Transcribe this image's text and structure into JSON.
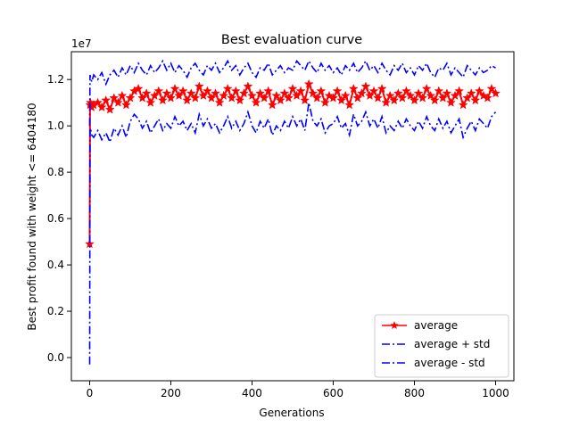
{
  "chart_data": {
    "type": "line",
    "title": "Best evaluation curve",
    "xlabel": "Generations",
    "ylabel": "Best profit found with weight <= 6404180",
    "offset_text": "1e7",
    "xlim": [
      -45,
      1045
    ],
    "ylim": [
      -0.1,
      1.32
    ],
    "y_scale_factor": 10000000,
    "x_ticks": [
      0,
      200,
      400,
      600,
      800,
      1000
    ],
    "y_ticks": [
      0.0,
      0.2,
      0.4,
      0.6,
      0.8,
      1.0,
      1.2
    ],
    "y_tick_labels": [
      "0.0",
      "0.2",
      "0.4",
      "0.6",
      "0.8",
      "1.0",
      "1.2"
    ],
    "x_tick_labels": [
      "0",
      "200",
      "400",
      "600",
      "800",
      "1000"
    ],
    "legend_position": "lower-right",
    "series": [
      {
        "name": "average",
        "color": "#ff0000",
        "style": "solid",
        "marker": "star",
        "x": [
          0,
          1,
          2,
          5,
          10,
          20,
          30,
          40,
          50,
          60,
          70,
          80,
          90,
          100,
          110,
          120,
          130,
          140,
          150,
          160,
          170,
          180,
          190,
          200,
          210,
          220,
          230,
          240,
          250,
          260,
          270,
          280,
          290,
          300,
          310,
          320,
          330,
          340,
          350,
          360,
          370,
          380,
          390,
          400,
          410,
          420,
          430,
          440,
          450,
          460,
          470,
          480,
          490,
          500,
          510,
          520,
          530,
          540,
          550,
          560,
          570,
          580,
          590,
          600,
          610,
          620,
          630,
          640,
          650,
          660,
          670,
          680,
          690,
          700,
          710,
          720,
          730,
          740,
          750,
          760,
          770,
          780,
          790,
          800,
          810,
          820,
          830,
          840,
          850,
          860,
          870,
          880,
          890,
          900,
          910,
          920,
          930,
          940,
          950,
          960,
          970,
          980,
          990,
          1000
        ],
        "values": [
          0.49,
          1.09,
          1.1,
          1.08,
          1.09,
          1.1,
          1.08,
          1.11,
          1.07,
          1.12,
          1.1,
          1.13,
          1.09,
          1.12,
          1.15,
          1.16,
          1.12,
          1.14,
          1.1,
          1.13,
          1.15,
          1.11,
          1.14,
          1.12,
          1.16,
          1.13,
          1.15,
          1.11,
          1.14,
          1.12,
          1.17,
          1.13,
          1.15,
          1.12,
          1.14,
          1.1,
          1.13,
          1.16,
          1.12,
          1.15,
          1.11,
          1.14,
          1.17,
          1.13,
          1.1,
          1.14,
          1.12,
          1.15,
          1.09,
          1.13,
          1.11,
          1.14,
          1.12,
          1.16,
          1.13,
          1.15,
          1.11,
          1.18,
          1.14,
          1.12,
          1.15,
          1.1,
          1.13,
          1.12,
          1.15,
          1.11,
          1.13,
          1.09,
          1.16,
          1.12,
          1.14,
          1.17,
          1.13,
          1.15,
          1.12,
          1.16,
          1.1,
          1.13,
          1.11,
          1.14,
          1.12,
          1.15,
          1.13,
          1.11,
          1.14,
          1.12,
          1.16,
          1.13,
          1.11,
          1.15,
          1.12,
          1.14,
          1.1,
          1.13,
          1.15,
          1.09,
          1.12,
          1.14,
          1.11,
          1.15,
          1.13,
          1.12,
          1.16,
          1.14
        ]
      },
      {
        "name": "average + std",
        "color": "#0000ff",
        "style": "dashdot",
        "x": [
          0,
          1,
          2,
          5,
          10,
          20,
          30,
          40,
          50,
          60,
          70,
          80,
          90,
          100,
          110,
          120,
          130,
          140,
          150,
          160,
          170,
          180,
          190,
          200,
          210,
          220,
          230,
          240,
          250,
          260,
          270,
          280,
          290,
          300,
          310,
          320,
          330,
          340,
          350,
          360,
          370,
          380,
          390,
          400,
          410,
          420,
          430,
          440,
          450,
          460,
          470,
          480,
          490,
          500,
          510,
          520,
          530,
          540,
          550,
          560,
          570,
          580,
          590,
          600,
          610,
          620,
          630,
          640,
          650,
          660,
          670,
          680,
          690,
          700,
          710,
          720,
          730,
          740,
          750,
          760,
          770,
          780,
          790,
          800,
          810,
          820,
          830,
          840,
          850,
          860,
          870,
          880,
          890,
          900,
          910,
          920,
          930,
          940,
          950,
          960,
          970,
          980,
          990,
          1000
        ],
        "values": [
          1.0,
          1.22,
          1.21,
          1.19,
          1.22,
          1.2,
          1.23,
          1.18,
          1.22,
          1.24,
          1.21,
          1.25,
          1.22,
          1.26,
          1.23,
          1.27,
          1.24,
          1.22,
          1.26,
          1.23,
          1.25,
          1.28,
          1.24,
          1.27,
          1.23,
          1.26,
          1.24,
          1.21,
          1.25,
          1.27,
          1.24,
          1.22,
          1.26,
          1.24,
          1.27,
          1.23,
          1.25,
          1.28,
          1.24,
          1.26,
          1.22,
          1.25,
          1.27,
          1.23,
          1.21,
          1.25,
          1.24,
          1.27,
          1.22,
          1.24,
          1.26,
          1.23,
          1.25,
          1.24,
          1.28,
          1.26,
          1.24,
          1.28,
          1.25,
          1.23,
          1.27,
          1.24,
          1.26,
          1.23,
          1.25,
          1.22,
          1.26,
          1.24,
          1.27,
          1.23,
          1.25,
          1.28,
          1.24,
          1.26,
          1.23,
          1.27,
          1.24,
          1.22,
          1.26,
          1.24,
          1.27,
          1.23,
          1.25,
          1.22,
          1.26,
          1.24,
          1.27,
          1.23,
          1.21,
          1.25,
          1.24,
          1.27,
          1.22,
          1.25,
          1.23,
          1.21,
          1.26,
          1.24,
          1.22,
          1.25,
          1.23,
          1.24,
          1.26,
          1.25
        ]
      },
      {
        "name": "average - std",
        "color": "#0000ff",
        "style": "dashdot",
        "x": [
          0,
          1,
          2,
          5,
          10,
          20,
          30,
          40,
          50,
          60,
          70,
          80,
          90,
          100,
          110,
          120,
          130,
          140,
          150,
          160,
          170,
          180,
          190,
          200,
          210,
          220,
          230,
          240,
          250,
          260,
          270,
          280,
          290,
          300,
          310,
          320,
          330,
          340,
          350,
          360,
          370,
          380,
          390,
          400,
          410,
          420,
          430,
          440,
          450,
          460,
          470,
          480,
          490,
          500,
          510,
          520,
          530,
          540,
          550,
          560,
          570,
          580,
          590,
          600,
          610,
          620,
          630,
          640,
          650,
          660,
          670,
          680,
          690,
          700,
          710,
          720,
          730,
          740,
          750,
          760,
          770,
          780,
          790,
          800,
          810,
          820,
          830,
          840,
          850,
          860,
          870,
          880,
          890,
          900,
          910,
          920,
          930,
          940,
          950,
          960,
          970,
          980,
          990,
          1000
        ],
        "values": [
          -0.03,
          0.98,
          0.99,
          0.96,
          0.95,
          0.98,
          0.94,
          0.97,
          0.93,
          0.99,
          0.96,
          1.0,
          0.95,
          1.02,
          1.05,
          1.03,
          0.99,
          1.02,
          0.97,
          1.0,
          1.03,
          0.98,
          1.01,
          0.99,
          1.04,
          1.0,
          1.02,
          0.98,
          1.01,
          0.97,
          1.05,
          1.0,
          1.03,
          0.99,
          1.01,
          0.97,
          1.0,
          1.04,
          0.99,
          1.02,
          0.98,
          1.01,
          1.06,
          1.0,
          0.97,
          1.02,
          0.99,
          1.03,
          0.96,
          1.0,
          0.98,
          1.02,
          0.99,
          1.04,
          1.0,
          1.03,
          0.98,
          1.1,
          1.02,
          1.0,
          1.03,
          0.97,
          1.0,
          1.01,
          1.04,
          0.99,
          1.01,
          0.96,
          1.05,
          1.0,
          1.02,
          1.06,
          1.0,
          1.03,
          0.99,
          1.04,
          0.97,
          1.0,
          0.98,
          1.02,
          0.99,
          1.03,
          1.0,
          0.98,
          1.02,
          0.99,
          1.04,
          1.0,
          0.98,
          1.03,
          0.99,
          1.02,
          0.97,
          1.0,
          1.03,
          0.95,
          0.99,
          1.02,
          0.98,
          1.03,
          1.01,
          0.99,
          1.04,
          1.06
        ]
      }
    ]
  }
}
